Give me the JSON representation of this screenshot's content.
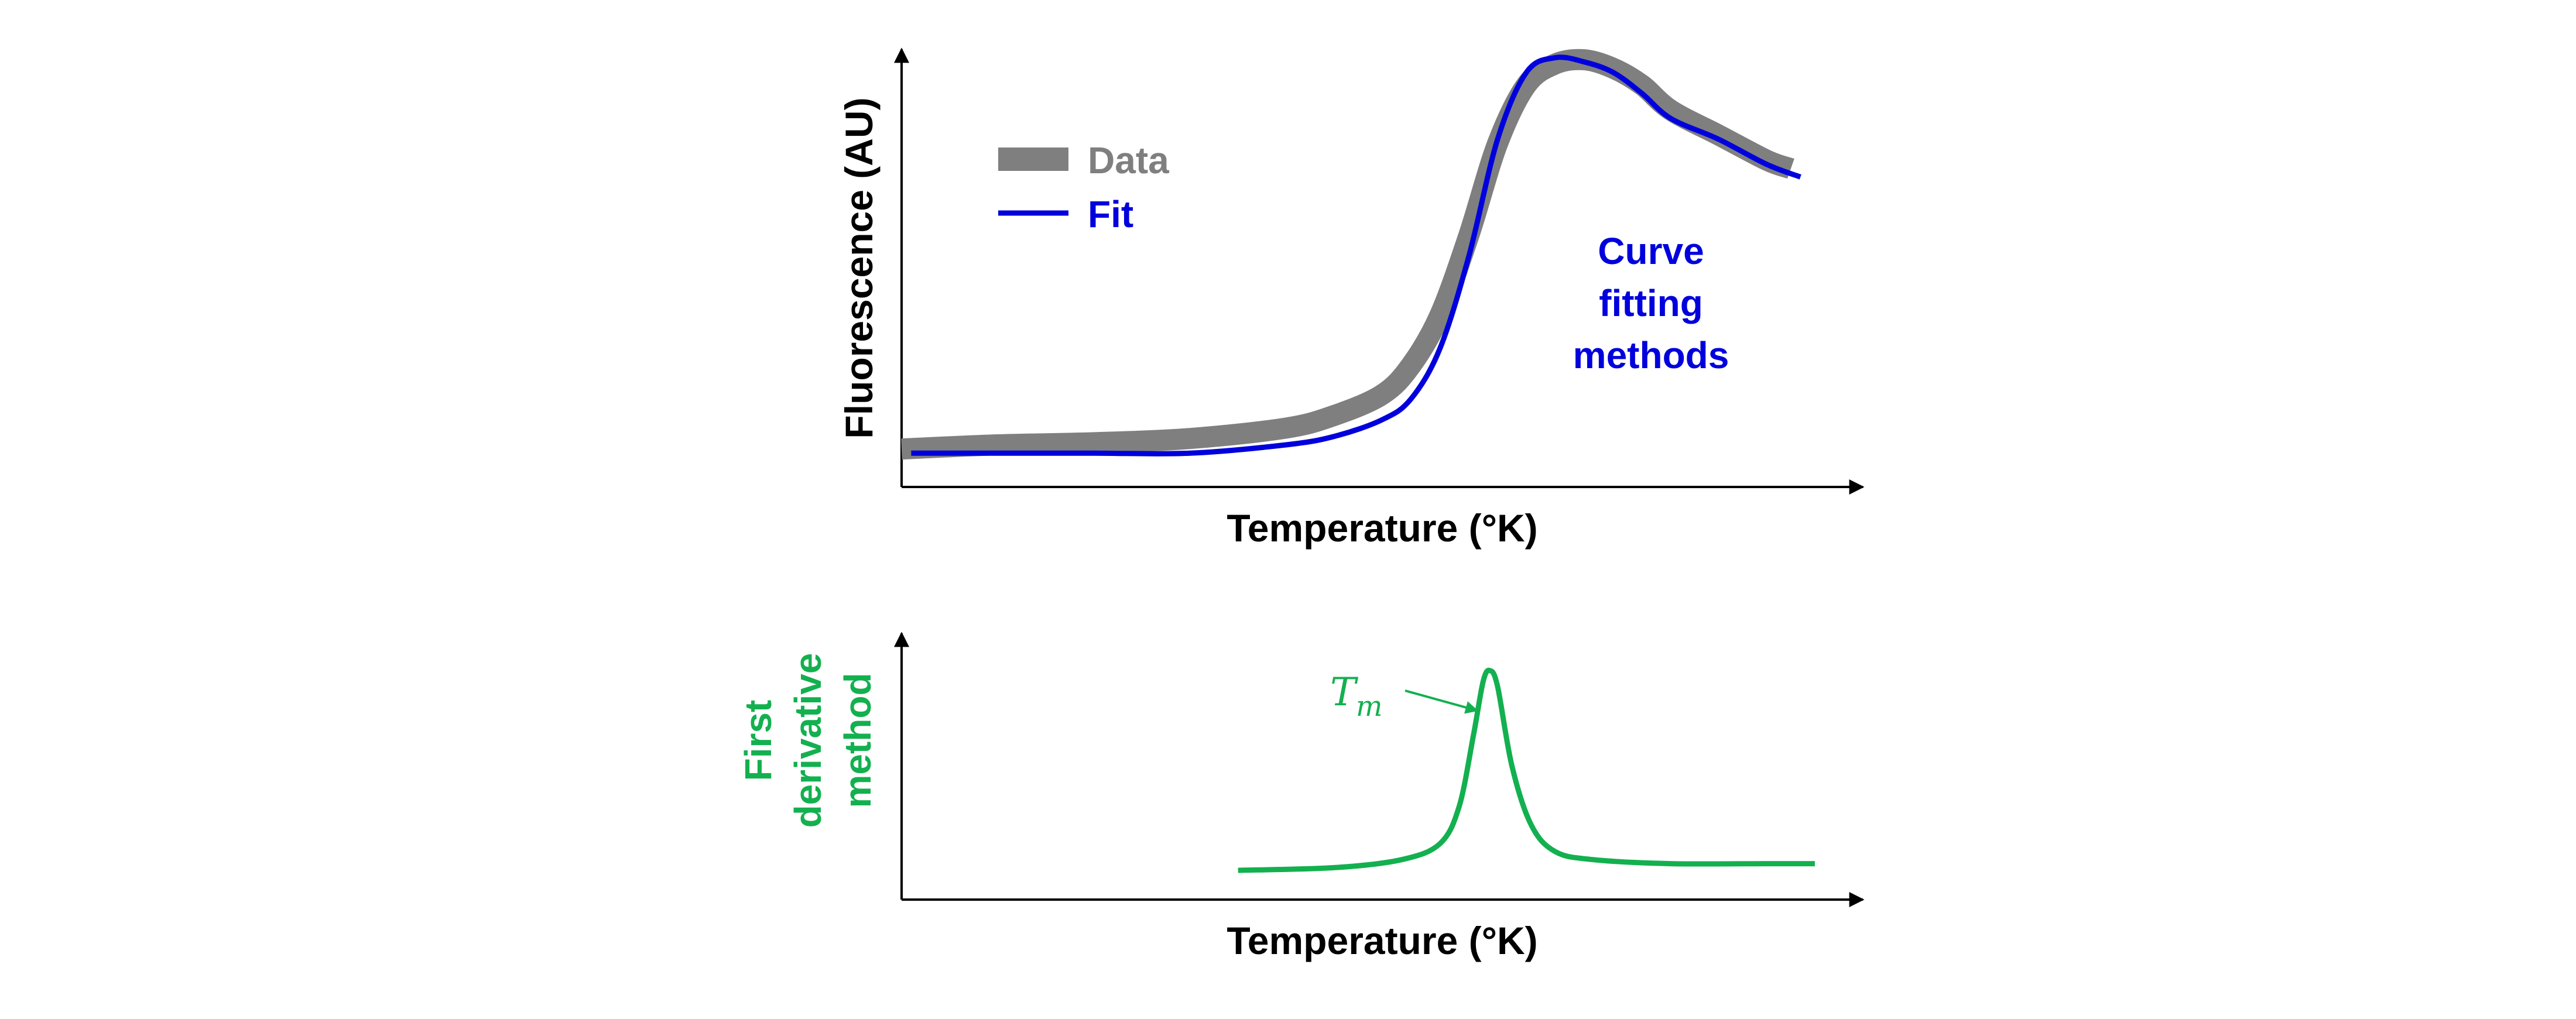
{
  "colors": {
    "axis": "#000000",
    "data_series": "#7f7f7f",
    "fit_series": "#0000dd",
    "fit_text": "#0000dd",
    "derivative": "#13b04f",
    "legend_data_text": "#7f7f7f"
  },
  "chart_data": [
    {
      "type": "line",
      "title": "",
      "xlabel": "Temperature (°K)",
      "ylabel": "Fluorescence (AU)",
      "xlim": [
        0,
        100
      ],
      "ylim": [
        0,
        100
      ],
      "ticks": "none",
      "grid": false,
      "legend_placement": "top-left",
      "annotation": [
        "Curve",
        "fitting",
        "methods"
      ],
      "series": [
        {
          "name": "Data",
          "x": [
            0,
            10,
            20,
            30,
            40,
            45,
            50,
            53,
            56,
            59,
            62,
            65,
            68,
            71,
            74,
            77,
            80,
            85,
            90,
            92.5
          ],
          "y": [
            6,
            7,
            7.5,
            8.5,
            11,
            14,
            19,
            26,
            38,
            57,
            79,
            93,
            98,
            99,
            97,
            93,
            87,
            81,
            75,
            73
          ]
        },
        {
          "name": "Fit",
          "x": [
            1,
            10,
            20,
            30,
            40,
            45,
            50,
            53,
            56,
            59,
            62,
            65,
            68,
            71,
            74,
            77,
            80,
            85,
            90,
            93.5
          ],
          "y": [
            5,
            5,
            5,
            5,
            7,
            9,
            13,
            18,
            30,
            52,
            80,
            96,
            99.5,
            98.5,
            96,
            91,
            85,
            80,
            74,
            71
          ]
        }
      ]
    },
    {
      "type": "line",
      "title": "",
      "xlabel": "Temperature (°K)",
      "ylabel": [
        "First",
        "derivative",
        "method"
      ],
      "xlim": [
        0,
        100
      ],
      "ylim": [
        0,
        100
      ],
      "ticks": "none",
      "grid": false,
      "annotation": {
        "label": "T",
        "subscript": "m"
      },
      "series": [
        {
          "x": [
            35,
            45,
            52,
            56,
            58,
            59.5,
            60.5,
            61.2,
            62,
            63.5,
            65.5,
            68,
            72,
            80,
            90,
            95
          ],
          "y": [
            11,
            12,
            15,
            21,
            35,
            62,
            82,
            86,
            80,
            50,
            28,
            18,
            15,
            13.5,
            13.5,
            13.5
          ]
        }
      ]
    }
  ]
}
